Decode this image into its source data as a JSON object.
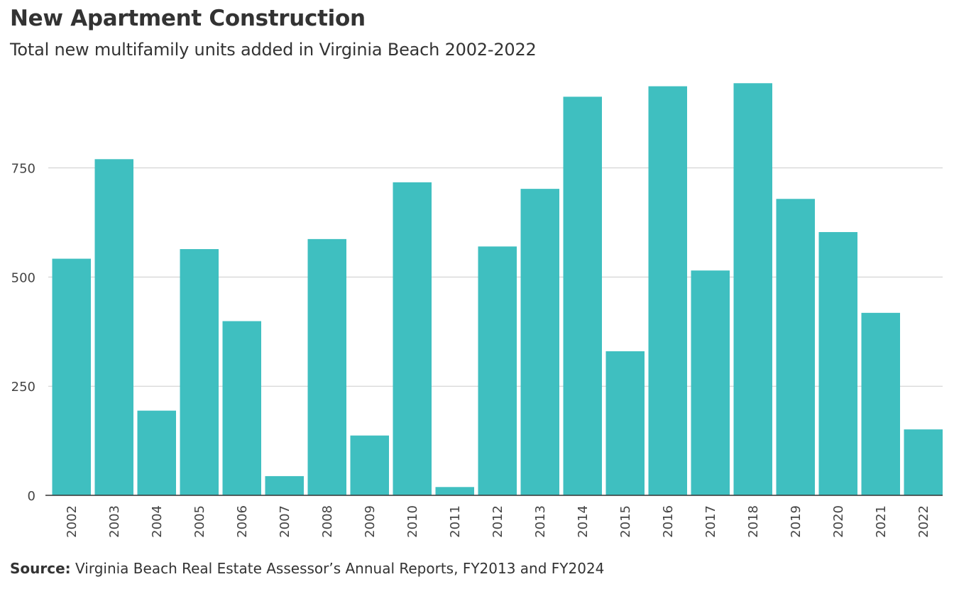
{
  "header": {
    "title": "New Apartment Construction",
    "subtitle": "Total new multifamily units added in Virginia Beach 2002-2022"
  },
  "footer": {
    "source_label": "Source:",
    "source_text": "Virginia Beach Real Estate Assessor’s Annual Reports, FY2013 and FY2024"
  },
  "colors": {
    "bar": "#3fbfc0",
    "grid": "#cccccc",
    "axis": "#333333"
  },
  "chart_data": {
    "type": "bar",
    "title": "New Apartment Construction",
    "subtitle": "Total new multifamily units added in Virginia Beach 2002-2022",
    "xlabel": "",
    "ylabel": "",
    "categories": [
      "2002",
      "2003",
      "2004",
      "2005",
      "2006",
      "2007",
      "2008",
      "2009",
      "2010",
      "2011",
      "2012",
      "2013",
      "2014",
      "2015",
      "2016",
      "2017",
      "2018",
      "2019",
      "2020",
      "2021",
      "2022"
    ],
    "values": [
      542,
      770,
      194,
      564,
      399,
      44,
      587,
      137,
      717,
      19,
      570,
      702,
      913,
      330,
      937,
      515,
      944,
      679,
      603,
      418,
      151
    ],
    "ylim": [
      0,
      950
    ],
    "yticks": [
      0,
      250,
      500,
      750
    ],
    "grid": true
  }
}
